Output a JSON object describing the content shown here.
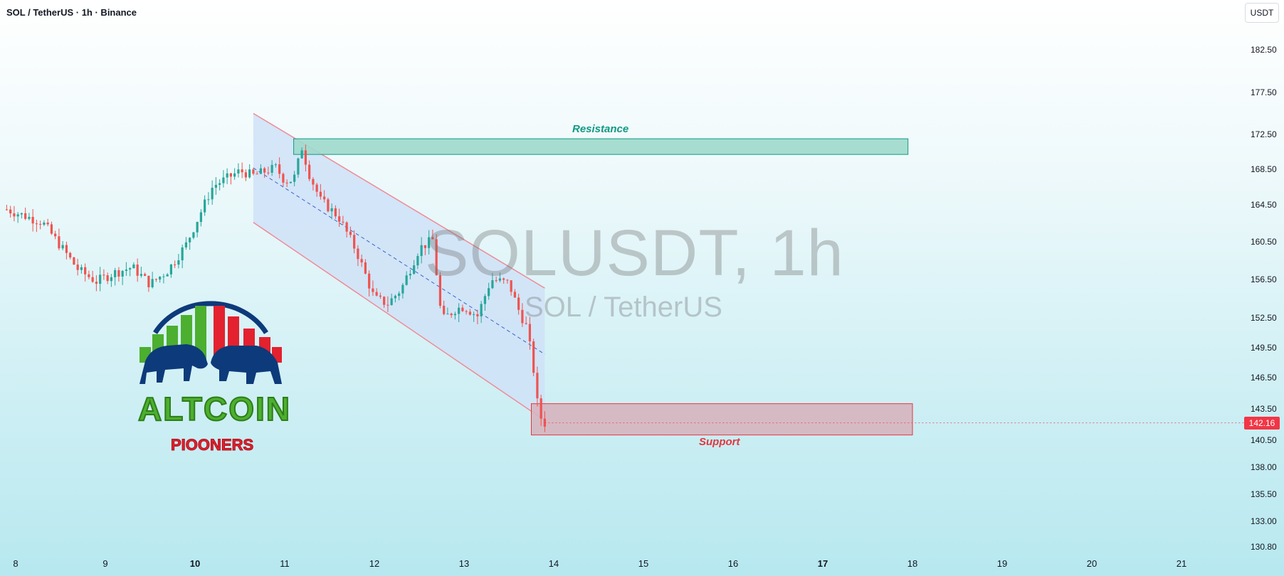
{
  "header": {
    "symbol_title": "SOL / TetherUS · 1h · Binance",
    "currency": "USDT"
  },
  "watermark": {
    "symbol": "SOLUSDT, 1h",
    "name": "SOL / TetherUS"
  },
  "logo": {
    "main_text": "ALTCOIN",
    "sub_text": "PIOONERS",
    "icons": [
      "bull-icon",
      "bear-icon"
    ]
  },
  "colors": {
    "up_candle": "#26a69a",
    "down_candle": "#ef5350",
    "resistance_zone": "#9fd9cc",
    "support_zone": "#d6b4bf",
    "channel_fill": "#cfe2f7",
    "channel_line": "#f08a96",
    "price_tag": "#f23645"
  },
  "chart_data": {
    "type": "candlestick",
    "timeframe": "1h",
    "x_ticks": [
      {
        "label": "8",
        "day": 8,
        "major": false
      },
      {
        "label": "9",
        "day": 9,
        "major": false
      },
      {
        "label": "10",
        "day": 10,
        "major": true
      },
      {
        "label": "11",
        "day": 11,
        "major": false
      },
      {
        "label": "12",
        "day": 12,
        "major": false
      },
      {
        "label": "13",
        "day": 13,
        "major": false
      },
      {
        "label": "14",
        "day": 14,
        "major": false
      },
      {
        "label": "15",
        "day": 15,
        "major": false
      },
      {
        "label": "16",
        "day": 16,
        "major": false
      },
      {
        "label": "17",
        "day": 17,
        "major": true
      },
      {
        "label": "18",
        "day": 18,
        "major": false
      },
      {
        "label": "19",
        "day": 19,
        "major": false
      },
      {
        "label": "20",
        "day": 20,
        "major": false
      },
      {
        "label": "21",
        "day": 21,
        "major": false
      }
    ],
    "y_ticks": [
      "182.50",
      "177.50",
      "172.50",
      "168.50",
      "164.50",
      "160.50",
      "156.50",
      "152.50",
      "149.50",
      "146.50",
      "143.50",
      "140.50",
      "138.00",
      "135.50",
      "133.00",
      "130.80"
    ],
    "last_price": "142.16",
    "price_path": [
      [
        7.9,
        164.0
      ],
      [
        8.3,
        162.6
      ],
      [
        8.7,
        157.5
      ],
      [
        8.9,
        156.3
      ],
      [
        9.1,
        157.2
      ],
      [
        9.3,
        157.8
      ],
      [
        9.5,
        156.0
      ],
      [
        9.7,
        157.5
      ],
      [
        9.9,
        160.2
      ],
      [
        10.2,
        166.6
      ],
      [
        10.5,
        168.3
      ],
      [
        10.65,
        167.8
      ],
      [
        10.9,
        168.7
      ],
      [
        11.0,
        167.2
      ],
      [
        11.1,
        167.3
      ],
      [
        11.2,
        171.3
      ],
      [
        11.25,
        168.5
      ],
      [
        11.4,
        165.0
      ],
      [
        11.6,
        163.2
      ],
      [
        11.8,
        159.5
      ],
      [
        12.0,
        154.5
      ],
      [
        12.15,
        154.0
      ],
      [
        12.3,
        155.5
      ],
      [
        12.5,
        159.8
      ],
      [
        12.65,
        160.7
      ],
      [
        12.75,
        152.2
      ],
      [
        12.9,
        153.4
      ],
      [
        13.0,
        153.7
      ],
      [
        13.15,
        152.7
      ],
      [
        13.3,
        156.5
      ],
      [
        13.5,
        156.1
      ],
      [
        13.6,
        153.5
      ],
      [
        13.7,
        151.5
      ],
      [
        13.78,
        147.0
      ],
      [
        13.83,
        143.0
      ],
      [
        13.9,
        142.16
      ]
    ],
    "channel": {
      "upper_start": [
        10.65,
        175.0
      ],
      "upper_end": [
        13.9,
        155.6
      ],
      "lower_start": [
        10.65,
        162.6
      ],
      "lower_end": [
        13.9,
        142.4
      ]
    },
    "zones": [
      {
        "name": "Resistance",
        "from_day": 11.1,
        "to_day": 17.95,
        "low": 170.2,
        "high": 172.0
      },
      {
        "name": "Support",
        "from_day": 13.75,
        "to_day": 18.0,
        "low": 141.0,
        "high": 144.0
      }
    ],
    "grid": false,
    "legend": "none"
  }
}
